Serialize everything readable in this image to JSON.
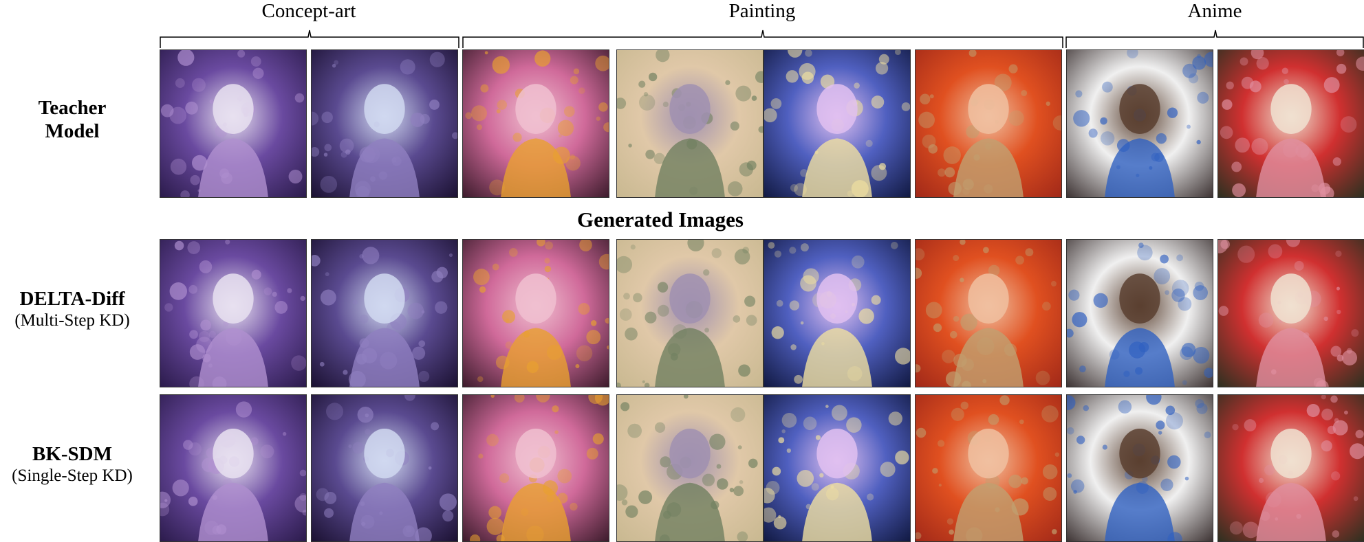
{
  "categories": [
    {
      "label": "Concept-art",
      "count": 2
    },
    {
      "label": "Painting",
      "count": 4
    },
    {
      "label": "Anime",
      "count": 2
    }
  ],
  "generated_images_title": "Generated Images",
  "rows": [
    {
      "id": "teacher",
      "name_line1": "Teacher",
      "name_line2": "Model",
      "subtitle": ""
    },
    {
      "id": "delta",
      "name_line1": "DELTA-Diff",
      "name_line2": "",
      "subtitle": "(Multi-Step KD)"
    },
    {
      "id": "bksdm",
      "name_line1": "BK-SDM",
      "name_line2": "",
      "subtitle": "(Single-Step KD)"
    }
  ],
  "image_columns": [
    {
      "subject": "astronaut-in-bubble",
      "palette": [
        "#2a1a4a",
        "#6a4aa0",
        "#e8e0f0",
        "#b090d0"
      ]
    },
    {
      "subject": "astronaut-in-crystal-sphere",
      "palette": [
        "#1a1030",
        "#5a4a90",
        "#d0d8f0",
        "#9080c0"
      ]
    },
    {
      "subject": "woman-in-leaves",
      "palette": [
        "#3a1a2a",
        "#d06a9a",
        "#f0c0d0",
        "#e8a030"
      ]
    },
    {
      "subject": "art-nouveau-woman",
      "palette": [
        "#c8b890",
        "#e0c8a8",
        "#a090b0",
        "#708060"
      ]
    },
    {
      "subject": "galaxy-in-jar",
      "palette": [
        "#101840",
        "#5060c0",
        "#e0c0f0",
        "#f0e0a0"
      ]
    },
    {
      "subject": "red-haired-woman",
      "palette": [
        "#a02818",
        "#e05020",
        "#f0c0a0",
        "#c0a070"
      ]
    },
    {
      "subject": "monkey-astronaut",
      "palette": [
        "#3a3030",
        "#f0f0f0",
        "#5a4030",
        "#3060c0"
      ]
    },
    {
      "subject": "woman-in-kimono",
      "palette": [
        "#2a3020",
        "#d03030",
        "#f0e0d0",
        "#e090a0"
      ]
    }
  ]
}
